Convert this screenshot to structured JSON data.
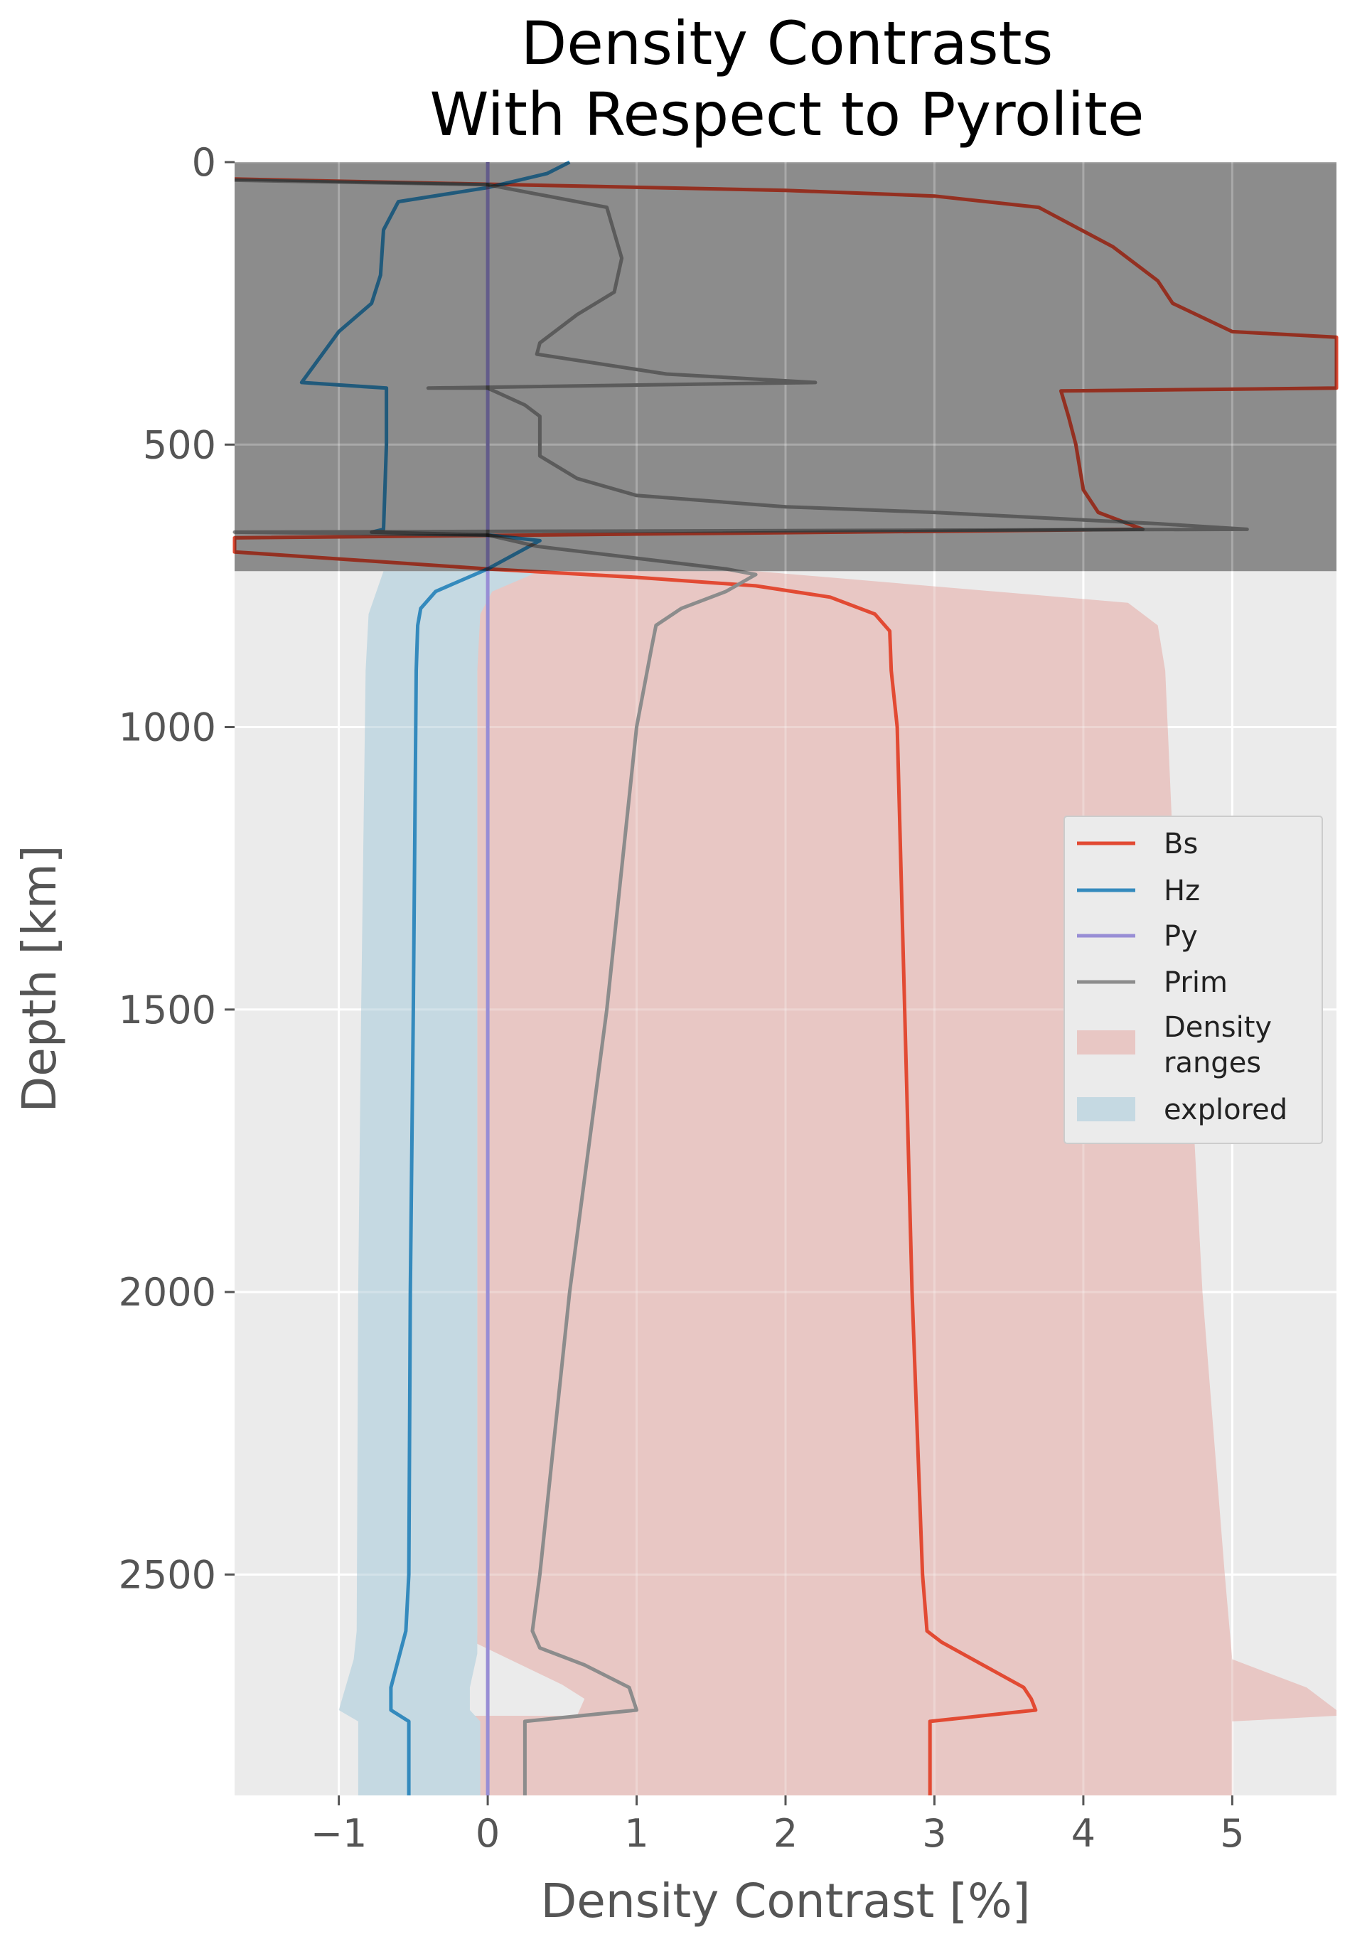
{
  "chart_data": {
    "type": "line",
    "title_lines": [
      "Density Contrasts",
      "With Respect to Pyrolite"
    ],
    "xlabel": "Density Contrast [%]",
    "ylabel": "Depth [km]",
    "xlim": [
      -1.7,
      5.7
    ],
    "ylim": [
      2891,
      0
    ],
    "y_inverted": true,
    "grid": true,
    "xticks": [
      -1,
      0,
      1,
      2,
      3,
      4,
      5
    ],
    "xtick_labels": [
      "−1",
      "0",
      "1",
      "2",
      "3",
      "4",
      "5"
    ],
    "yticks": [
      0,
      500,
      1000,
      1500,
      2000,
      2500
    ],
    "ytick_labels": [
      "0",
      "500",
      "1000",
      "1500",
      "2000",
      "2500"
    ],
    "legend_position": "center-right",
    "shaded_region": {
      "depth_range": [
        0,
        724
      ],
      "color": "#8c8c8c"
    },
    "colors": {
      "background": "#EBEBEB",
      "grid": "#FFFFFF",
      "Bs": "#E24A33",
      "Hz": "#348ABD",
      "Py": "#988ED5",
      "Prim": "#8C8C8C",
      "density_ranges": "#E8C7C4",
      "explored": "#C5D9E2"
    },
    "bands": [
      {
        "name": "Density ranges",
        "legend_label": [
          "Density",
          "ranges"
        ],
        "fill": "#E8C7C4",
        "left": [
          [
            -0.3,
            724
          ],
          [
            -0.1,
            800
          ],
          [
            -0.07,
            900
          ],
          [
            -0.07,
            2600
          ],
          [
            -0.1,
            2740
          ],
          [
            -0.06,
            2770
          ],
          [
            -0.06,
            2891
          ]
        ],
        "right": [
          [
            1.8,
            724
          ],
          [
            4.3,
            780
          ],
          [
            4.5,
            820
          ],
          [
            4.55,
            900
          ],
          [
            4.6,
            1200
          ],
          [
            4.7,
            1500
          ],
          [
            4.8,
            2000
          ],
          [
            4.95,
            2500
          ],
          [
            5.0,
            2650
          ],
          [
            5.5,
            2700
          ],
          [
            5.7,
            2740
          ],
          [
            5.7,
            2750
          ],
          [
            5.0,
            2760
          ],
          [
            5.0,
            2891
          ]
        ],
        "notch": [
          [
            -0.13,
            2615
          ],
          [
            0.5,
            2695
          ],
          [
            0.65,
            2720
          ],
          [
            0.6,
            2750
          ],
          [
            -0.13,
            2750
          ]
        ]
      },
      {
        "name": "explored",
        "legend_label": [
          "explored"
        ],
        "fill": "#C5D9E2",
        "left": [
          [
            -0.7,
            724
          ],
          [
            -0.8,
            800
          ],
          [
            -0.82,
            900
          ],
          [
            -0.85,
            1500
          ],
          [
            -0.87,
            2000
          ],
          [
            -0.88,
            2600
          ],
          [
            -0.9,
            2650
          ],
          [
            -1.0,
            2740
          ],
          [
            -0.87,
            2760
          ],
          [
            -0.87,
            2891
          ]
        ],
        "right": [
          [
            0.35,
            724
          ],
          [
            0.03,
            760
          ],
          [
            -0.05,
            800
          ],
          [
            -0.07,
            900
          ],
          [
            -0.07,
            2600
          ],
          [
            -0.07,
            2640
          ],
          [
            -0.12,
            2700
          ],
          [
            -0.12,
            2740
          ],
          [
            -0.05,
            2760
          ],
          [
            -0.05,
            2891
          ]
        ]
      }
    ],
    "series": [
      {
        "name": "Bs",
        "color": "#E24A33",
        "points": [
          [
            -1.7,
            30
          ],
          [
            2.0,
            50
          ],
          [
            3.0,
            60
          ],
          [
            3.7,
            80
          ],
          [
            4.2,
            150
          ],
          [
            4.5,
            210
          ],
          [
            4.6,
            250
          ],
          [
            5.0,
            300
          ],
          [
            5.7,
            310
          ],
          [
            5.7,
            400
          ],
          [
            3.85,
            405
          ],
          [
            3.9,
            450
          ],
          [
            3.95,
            500
          ],
          [
            4.0,
            580
          ],
          [
            4.1,
            620
          ],
          [
            4.4,
            650
          ],
          [
            -1.7,
            665
          ],
          [
            -1.7,
            690
          ],
          [
            0.0,
            720
          ],
          [
            1.0,
            735
          ],
          [
            1.8,
            750
          ],
          [
            2.3,
            770
          ],
          [
            2.6,
            800
          ],
          [
            2.7,
            830
          ],
          [
            2.71,
            900
          ],
          [
            2.75,
            1000
          ],
          [
            2.8,
            1500
          ],
          [
            2.85,
            2000
          ],
          [
            2.92,
            2500
          ],
          [
            2.95,
            2600
          ],
          [
            3.05,
            2620
          ],
          [
            3.6,
            2700
          ],
          [
            3.65,
            2720
          ],
          [
            3.68,
            2740
          ],
          [
            2.97,
            2760
          ],
          [
            2.97,
            2891
          ]
        ]
      },
      {
        "name": "Hz",
        "color": "#348ABD",
        "points": [
          [
            0.55,
            0
          ],
          [
            0.4,
            20
          ],
          [
            0.0,
            45
          ],
          [
            -0.6,
            70
          ],
          [
            -0.7,
            120
          ],
          [
            -0.72,
            200
          ],
          [
            -0.78,
            250
          ],
          [
            -1.0,
            300
          ],
          [
            -1.25,
            390
          ],
          [
            -0.68,
            400
          ],
          [
            -0.68,
            500
          ],
          [
            -0.7,
            650
          ],
          [
            -0.78,
            655
          ],
          [
            0.0,
            660
          ],
          [
            0.35,
            670
          ],
          [
            0.0,
            720
          ],
          [
            -0.35,
            760
          ],
          [
            -0.45,
            790
          ],
          [
            -0.47,
            820
          ],
          [
            -0.48,
            900
          ],
          [
            -0.5,
            1500
          ],
          [
            -0.52,
            2000
          ],
          [
            -0.53,
            2500
          ],
          [
            -0.55,
            2600
          ],
          [
            -0.6,
            2650
          ],
          [
            -0.65,
            2700
          ],
          [
            -0.65,
            2740
          ],
          [
            -0.53,
            2760
          ],
          [
            -0.53,
            2891
          ]
        ]
      },
      {
        "name": "Py",
        "color": "#988ED5",
        "points": [
          [
            0,
            0
          ],
          [
            0,
            2891
          ]
        ]
      },
      {
        "name": "Prim",
        "color": "#8C8C8C",
        "points": [
          [
            -1.7,
            32
          ],
          [
            0.0,
            40
          ],
          [
            0.8,
            80
          ],
          [
            0.9,
            170
          ],
          [
            0.85,
            230
          ],
          [
            0.6,
            270
          ],
          [
            0.35,
            320
          ],
          [
            0.33,
            340
          ],
          [
            1.2,
            375
          ],
          [
            2.2,
            390
          ],
          [
            -0.4,
            400
          ],
          [
            0.0,
            400
          ],
          [
            0.25,
            430
          ],
          [
            0.35,
            450
          ],
          [
            0.35,
            520
          ],
          [
            0.6,
            560
          ],
          [
            1.0,
            590
          ],
          [
            2.0,
            610
          ],
          [
            3.0,
            620
          ],
          [
            4.5,
            640
          ],
          [
            5.1,
            650
          ],
          [
            -1.7,
            655
          ],
          [
            0.0,
            660
          ],
          [
            0.33,
            680
          ],
          [
            1.6,
            720
          ],
          [
            1.8,
            730
          ],
          [
            1.6,
            760
          ],
          [
            1.3,
            790
          ],
          [
            1.13,
            820
          ],
          [
            1.1,
            860
          ],
          [
            1.0,
            1000
          ],
          [
            0.8,
            1500
          ],
          [
            0.55,
            2000
          ],
          [
            0.35,
            2500
          ],
          [
            0.3,
            2600
          ],
          [
            0.35,
            2630
          ],
          [
            0.65,
            2660
          ],
          [
            0.95,
            2700
          ],
          [
            1.0,
            2740
          ],
          [
            0.25,
            2760
          ],
          [
            0.25,
            2891
          ]
        ]
      }
    ],
    "legend": [
      {
        "label": [
          "Bs"
        ],
        "kind": "line",
        "color": "#E24A33"
      },
      {
        "label": [
          "Hz"
        ],
        "kind": "line",
        "color": "#348ABD"
      },
      {
        "label": [
          "Py"
        ],
        "kind": "line",
        "color": "#988ED5"
      },
      {
        "label": [
          "Prim"
        ],
        "kind": "line",
        "color": "#8C8C8C"
      },
      {
        "label": [
          "Density",
          "ranges"
        ],
        "kind": "patch",
        "color": "#E8C7C4"
      },
      {
        "label": [
          "explored"
        ],
        "kind": "patch",
        "color": "#C5D9E2"
      }
    ]
  }
}
